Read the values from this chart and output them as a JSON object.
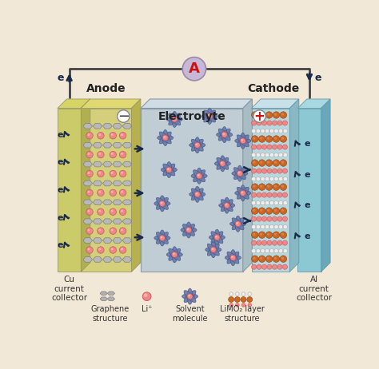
{
  "bg_color": "#f2e8d8",
  "anode_label": "Anode",
  "cathode_label": "Cathode",
  "electrolyte_label": "Electrolyte",
  "cu_label": "Cu\ncurrent\ncollector",
  "al_label": "Al\ncurrent\ncollector",
  "ammeter_label": "A",
  "anode_color": "#d4cf7a",
  "cathode_color": "#b8d8de",
  "cu_color": "#cccb6a",
  "al_color": "#8cc8d4",
  "electrolyte_bg": "#c0cdd4",
  "electrolyte_top": "#d0dde4",
  "electrolyte_right": "#a8bcc4",
  "graphene_color": "#b8b8b8",
  "graphene_edge": "#808080",
  "li_color": "#ee8888",
  "li_edge": "#cc5555",
  "solvent_color": "#6878a8",
  "solvent_edge": "#445588",
  "limo2_orange": "#cc6622",
  "limo2_orange_edge": "#884411",
  "limo2_pink": "#ee8888",
  "limo2_white": "#eeeeee",
  "arrow_color": "#1a2a4a",
  "wire_color": "#444444",
  "ammeter_fill": "#c8b8d8",
  "ammeter_text": "#cc1111",
  "plus_text": "#cc1111",
  "minus_text": "#333333",
  "label_color": "#222222"
}
